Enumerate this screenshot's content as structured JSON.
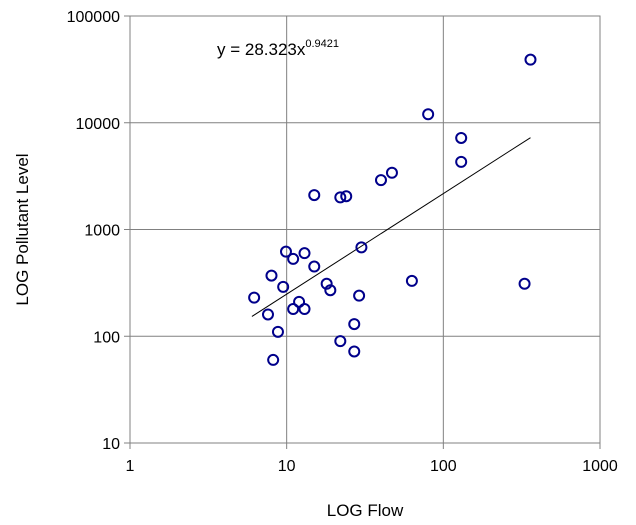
{
  "chart_data": {
    "type": "scatter",
    "title": "",
    "xlabel": "LOG Flow",
    "ylabel": "LOG Pollutant Level",
    "x_scale": "log",
    "y_scale": "log",
    "xlim": [
      1,
      1000
    ],
    "ylim": [
      10,
      100000
    ],
    "x_ticks": [
      "1",
      "10",
      "100",
      "1000"
    ],
    "y_ticks": [
      "10",
      "100",
      "1000",
      "10000",
      "100000"
    ],
    "grid": true,
    "legend": false,
    "marker": "open-circle",
    "marker_color": "#00008b",
    "points": [
      {
        "x": 6.2,
        "y": 230
      },
      {
        "x": 7.6,
        "y": 160
      },
      {
        "x": 8.0,
        "y": 370
      },
      {
        "x": 8.2,
        "y": 60
      },
      {
        "x": 8.8,
        "y": 110
      },
      {
        "x": 9.5,
        "y": 290
      },
      {
        "x": 9.9,
        "y": 620
      },
      {
        "x": 11.0,
        "y": 530
      },
      {
        "x": 11.0,
        "y": 180
      },
      {
        "x": 12.0,
        "y": 210
      },
      {
        "x": 13.0,
        "y": 180
      },
      {
        "x": 13.0,
        "y": 600
      },
      {
        "x": 15.0,
        "y": 450
      },
      {
        "x": 15.0,
        "y": 2100
      },
      {
        "x": 18.0,
        "y": 310
      },
      {
        "x": 19.0,
        "y": 270
      },
      {
        "x": 22.0,
        "y": 2000
      },
      {
        "x": 22.0,
        "y": 90
      },
      {
        "x": 24.0,
        "y": 2050
      },
      {
        "x": 27.0,
        "y": 130
      },
      {
        "x": 27.0,
        "y": 72
      },
      {
        "x": 29.0,
        "y": 240
      },
      {
        "x": 30.0,
        "y": 680
      },
      {
        "x": 40.0,
        "y": 2900
      },
      {
        "x": 47.0,
        "y": 3400
      },
      {
        "x": 63.0,
        "y": 330
      },
      {
        "x": 80.0,
        "y": 12000
      },
      {
        "x": 130.0,
        "y": 7200
      },
      {
        "x": 130.0,
        "y": 4300
      },
      {
        "x": 330.0,
        "y": 310
      },
      {
        "x": 360.0,
        "y": 39000
      }
    ],
    "trendline": {
      "type": "power",
      "coefficient": 28.323,
      "exponent": 0.9421,
      "x_range": [
        6,
        360
      ],
      "color": "#000000"
    },
    "annotations": {
      "equation_main": "y = 28.323x",
      "equation_exponent": "0.9421"
    }
  },
  "colors": {
    "frame": "#808080",
    "grid": "#808080",
    "marker": "#00008b",
    "trendline": "#000000"
  }
}
